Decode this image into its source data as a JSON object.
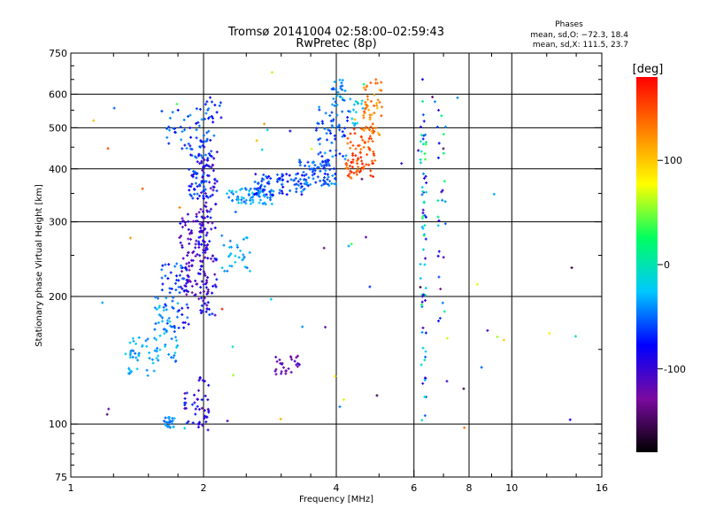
{
  "chart_data": {
    "type": "scatter",
    "title": "Tromsø 20141004 02:58:00–02:59:43",
    "subtitle": "RwPretec (8p)",
    "xlabel": "Frequency [MHz]",
    "ylabel": "Stationary phase Virtual Height [km]",
    "x_scale": "log",
    "y_scale": "log",
    "xlim": [
      1,
      16
    ],
    "ylim": [
      75,
      750
    ],
    "x_ticks": [
      1,
      2,
      4,
      6,
      8,
      10,
      16
    ],
    "y_ticks": [
      75,
      100,
      200,
      300,
      400,
      500,
      600,
      750
    ],
    "grid": true,
    "phase_stats": {
      "heading": "Phases",
      "o_mode": "mean, sd,O: −72.3, 18.4",
      "x_mode": "mean, sd,X: 111.5, 23.7"
    },
    "colorbar": {
      "label": "[deg]",
      "range": [
        -180,
        180
      ],
      "ticks": [
        100,
        0,
        -100
      ],
      "colors": [
        "#000000",
        "#7a0aa0",
        "#0000ff",
        "#00c8ff",
        "#00ff60",
        "#ffff00",
        "#ff8000",
        "#ff0000"
      ]
    },
    "series": [
      {
        "clusters": [
          {
            "f": [
              1.62,
              1.72
            ],
            "h": [
              98,
              104
            ],
            "n": 25,
            "phase": [
              -55,
              -25
            ]
          },
          {
            "f": [
              1.78,
              1.95
            ],
            "h": [
              98,
              120
            ],
            "n": 22,
            "phase": [
              -125,
              -60
            ]
          },
          {
            "f": [
              1.95,
              2.06
            ],
            "h": [
              96,
              130
            ],
            "n": 24,
            "phase": [
              -115,
              -70
            ]
          },
          {
            "f": [
              1.32,
              1.55
            ],
            "h": [
              130,
              160
            ],
            "n": 40,
            "phase": [
              -50,
              -20
            ]
          },
          {
            "f": [
              1.55,
              1.75
            ],
            "h": [
              140,
              200
            ],
            "n": 55,
            "phase": [
              -55,
              -15
            ]
          },
          {
            "f": [
              1.6,
              1.85
            ],
            "h": [
              165,
              240
            ],
            "n": 55,
            "phase": [
              -90,
              -40
            ]
          },
          {
            "f": [
              1.75,
              2.05
            ],
            "h": [
              200,
              320
            ],
            "n": 110,
            "phase": [
              -130,
              -75
            ]
          },
          {
            "f": [
              1.95,
              2.15
            ],
            "h": [
              180,
              440
            ],
            "n": 120,
            "phase": [
              -120,
              -60
            ]
          },
          {
            "f": [
              1.85,
              2.05
            ],
            "h": [
              340,
              480
            ],
            "n": 70,
            "phase": [
              -95,
              -45
            ]
          },
          {
            "f": [
              1.65,
              2.15
            ],
            "h": [
              440,
              560
            ],
            "n": 45,
            "phase": [
              -85,
              -35
            ]
          },
          {
            "f": [
              2.0,
              2.25
            ],
            "h": [
              520,
              580
            ],
            "n": 12,
            "phase": [
              -90,
              -40
            ]
          },
          {
            "f": [
              2.2,
              2.55
            ],
            "h": [
              225,
              280
            ],
            "n": 30,
            "phase": [
              -50,
              -20
            ]
          },
          {
            "f": [
              2.25,
              2.9
            ],
            "h": [
              330,
              360
            ],
            "n": 70,
            "phase": [
              -60,
              -20
            ]
          },
          {
            "f": [
              2.6,
              3.4
            ],
            "h": [
              345,
              390
            ],
            "n": 80,
            "phase": [
              -90,
              -40
            ]
          },
          {
            "f": [
              3.3,
              4.0
            ],
            "h": [
              365,
              420
            ],
            "n": 80,
            "phase": [
              -75,
              -35
            ]
          },
          {
            "f": [
              3.6,
              4.3
            ],
            "h": [
              420,
              560
            ],
            "n": 55,
            "phase": [
              -75,
              -35
            ]
          },
          {
            "f": [
              3.9,
              4.2
            ],
            "h": [
              560,
              650
            ],
            "n": 25,
            "phase": [
              -60,
              -30
            ]
          },
          {
            "f": [
              4.2,
              4.9
            ],
            "h": [
              380,
              500
            ],
            "n": 90,
            "phase": [
              130,
              170
            ]
          },
          {
            "f": [
              4.6,
              5.1
            ],
            "h": [
              480,
              650
            ],
            "n": 50,
            "phase": [
              105,
              150
            ]
          },
          {
            "f": [
              4.3,
              4.6
            ],
            "h": [
              500,
              620
            ],
            "n": 15,
            "phase": [
              -40,
              0
            ]
          },
          {
            "f": [
              2.9,
              3.3
            ],
            "h": [
              130,
              145
            ],
            "n": 28,
            "phase": [
              -130,
              -100
            ]
          },
          {
            "f": [
              6.2,
              6.4
            ],
            "h": [
              100,
              580
            ],
            "n": 70,
            "phase": [
              -110,
              40
            ]
          },
          {
            "f": [
              6.8,
              7.1
            ],
            "h": [
              170,
              560
            ],
            "n": 25,
            "phase": [
              -130,
              40
            ]
          },
          {
            "f": [
              1.1,
              14.0
            ],
            "h": [
              90,
              680
            ],
            "n": 70,
            "phase": [
              -160,
              170
            ]
          }
        ]
      }
    ]
  }
}
